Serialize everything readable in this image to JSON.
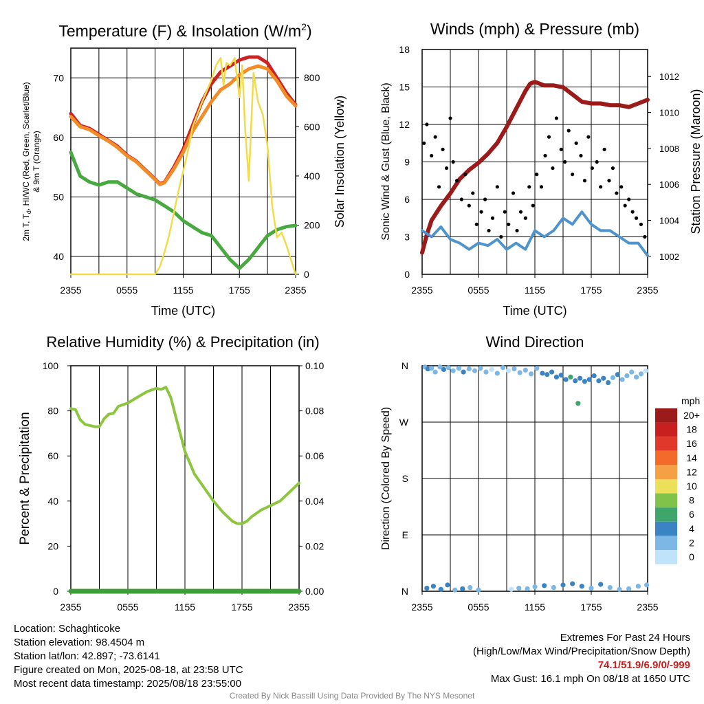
{
  "chart_data": [
    {
      "id": "temperature",
      "type": "line",
      "title": "Temperature (F) & Insolation (W/m",
      "title_sup": "2",
      "title_tail": ")",
      "xlabel": "Time (UTC)",
      "ylabel_lines": [
        "2m T, T",
        "d",
        ", HI/WC (Red, Green, Scarlet/Blue)",
        "& 9m T (Orange)"
      ],
      "y2label": "Solar Insolation (Yellow)",
      "xticks": [
        "2355",
        "0555",
        "1155",
        "1755",
        "2355"
      ],
      "xlim": [
        0,
        24
      ],
      "ylim": [
        37,
        75
      ],
      "yticks": [
        40,
        50,
        60,
        70
      ],
      "y2lim": [
        0,
        920
      ],
      "y2ticks": [
        0,
        200,
        400,
        600,
        800
      ],
      "grid": true,
      "x_hours_since_2355": [
        0,
        1,
        2,
        3,
        4,
        5,
        6,
        7,
        8,
        9,
        9.5,
        10,
        11,
        12,
        13,
        14,
        15,
        16,
        17,
        18,
        19,
        20,
        21,
        22,
        23,
        24
      ],
      "series": [
        {
          "color": "#cc2222",
          "values": [
            64,
            62,
            61.5,
            60.5,
            59.5,
            58.5,
            57,
            56,
            54.5,
            53,
            52.2,
            52.5,
            55,
            58,
            62,
            66,
            69,
            71,
            72,
            73,
            73.5,
            73.5,
            72.5,
            70,
            67.5,
            65.5
          ]
        },
        {
          "color": "#f28c28",
          "values": [
            63.5,
            61.8,
            61.3,
            60.3,
            59.4,
            58.3,
            56.9,
            55.9,
            54.4,
            52.9,
            52.1,
            52.4,
            54.7,
            57.5,
            61,
            63.5,
            66,
            68,
            69,
            70.5,
            71.5,
            72,
            71.5,
            69.5,
            67,
            65.3
          ]
        },
        {
          "color": "#48a941",
          "values": [
            57.5,
            53.5,
            52.5,
            52,
            52.5,
            52.5,
            51.5,
            50.5,
            50,
            49.5,
            49,
            48.5,
            47.5,
            46,
            45,
            44,
            43.5,
            41.5,
            39.5,
            38,
            39.5,
            41.5,
            43.5,
            44.5,
            45,
            45.2
          ]
        },
        {
          "color": "#f0dc4b",
          "axis": "y2",
          "x_hours_since_2355": [
            0,
            8,
            9,
            9.5,
            10,
            10.5,
            11,
            11.5,
            12,
            12.5,
            13,
            14,
            15,
            15.5,
            16,
            16.3,
            16.6,
            17,
            17.5,
            18,
            18.3,
            18.6,
            19,
            19.5,
            20,
            20.5,
            21,
            21.5,
            22,
            22.5,
            23,
            23.5,
            24
          ],
          "values": [
            0,
            0,
            0,
            30,
            90,
            160,
            250,
            340,
            420,
            500,
            600,
            700,
            790,
            850,
            880,
            770,
            860,
            850,
            880,
            720,
            850,
            600,
            380,
            820,
            700,
            650,
            520,
            280,
            150,
            170,
            120,
            60,
            0
          ]
        }
      ]
    },
    {
      "id": "winds",
      "type": "line",
      "title": "Winds (mph) & Pressure (mb)",
      "xlabel": "Time (UTC)",
      "ylabel": "Sonic Wind & Gust (Blue, Black)",
      "y2label": "Station Pressure (Maroon)",
      "xticks": [
        "2355",
        "0555",
        "1155",
        "1755",
        "2355"
      ],
      "xlim": [
        0,
        24
      ],
      "ylim": [
        0,
        18
      ],
      "yticks": [
        0,
        3,
        6,
        9,
        12,
        15,
        18
      ],
      "y2lim": [
        1001.0,
        1013.5
      ],
      "y2ticks": [
        1002,
        1004,
        1006,
        1008,
        1010,
        1012
      ],
      "grid": true,
      "series": [
        {
          "color": "#9b1a1a",
          "axis": "y2",
          "x_hours_since_2355": [
            0,
            0.5,
            1,
            2,
            3,
            4,
            5,
            6,
            7,
            8,
            9,
            10,
            11,
            11.5,
            12,
            13,
            14,
            15,
            16,
            17,
            18,
            19,
            20,
            21,
            22,
            23,
            24
          ],
          "values": [
            1002.2,
            1003.2,
            1004.0,
            1004.8,
            1005.5,
            1006.3,
            1006.8,
            1007.2,
            1007.7,
            1008.3,
            1009.2,
            1010.2,
            1011.2,
            1011.6,
            1011.7,
            1011.5,
            1011.5,
            1011.4,
            1011.0,
            1010.6,
            1010.5,
            1010.5,
            1010.4,
            1010.4,
            1010.3,
            1010.5,
            1010.7
          ]
        },
        {
          "color": "#4f94cd",
          "x_hours_since_2355": [
            0,
            1,
            2,
            3,
            4,
            5,
            6,
            7,
            8,
            9,
            10,
            11,
            12,
            13,
            14,
            15,
            16,
            17,
            18,
            19,
            20,
            21,
            22,
            23,
            24
          ],
          "values": [
            3.5,
            3.0,
            3.8,
            2.8,
            2.5,
            2.0,
            2.5,
            2.3,
            2.8,
            2.0,
            2.5,
            2.0,
            3.5,
            3.0,
            3.5,
            4.5,
            4.0,
            5.0,
            4.0,
            3.5,
            3.5,
            3.0,
            2.5,
            2.5,
            1.5
          ]
        },
        {
          "color": "#000000",
          "type": "scatter",
          "x_hours_since_2355": [
            0.2,
            0.5,
            1,
            1.4,
            1.8,
            2.2,
            2.6,
            3,
            3.3,
            3.7,
            4.2,
            4.6,
            5,
            5.4,
            5.8,
            6.3,
            6.7,
            7.1,
            7.5,
            8,
            8.4,
            8.8,
            9.2,
            9.7,
            10.1,
            10.5,
            11,
            11.4,
            11.8,
            12.2,
            12.7,
            13.1,
            13.5,
            13.9,
            14.3,
            14.8,
            15.2,
            15.6,
            16,
            16.4,
            16.9,
            17.3,
            17.7,
            18.1,
            18.6,
            19,
            19.4,
            19.9,
            20.3,
            20.7,
            21.2,
            21.6,
            22,
            22.4,
            22.8,
            23.3,
            23.7
          ],
          "values": [
            10.5,
            12.0,
            9.5,
            11.0,
            7.0,
            10.0,
            8.5,
            12.5,
            9.0,
            7.5,
            6.0,
            8.0,
            5.5,
            6.5,
            4.0,
            5.0,
            6.0,
            3.5,
            4.5,
            7.0,
            3.0,
            5.0,
            4.0,
            6.5,
            3.5,
            5.0,
            4.5,
            7.0,
            5.5,
            8.0,
            7.0,
            9.5,
            11.0,
            8.5,
            12.5,
            10.0,
            9.0,
            11.5,
            8.0,
            10.5,
            9.5,
            7.5,
            11.0,
            8.5,
            9.0,
            7.0,
            10.0,
            7.5,
            8.5,
            6.5,
            7.0,
            5.5,
            6.0,
            5.0,
            4.5,
            4.0,
            3.0
          ]
        }
      ]
    },
    {
      "id": "humidity",
      "type": "line",
      "title": "Relative Humidity (%) & Precipitation (in)",
      "ylabel": "Percent & Precipitation",
      "xticks": [
        "2355",
        "0555",
        "1155",
        "1755",
        "2355"
      ],
      "xlim": [
        0,
        24
      ],
      "ylim": [
        0,
        100
      ],
      "yticks": [
        0,
        20,
        40,
        60,
        80,
        100
      ],
      "y2lim": [
        0,
        0.1
      ],
      "y2ticks": [
        "0.00",
        "0.02",
        "0.04",
        "0.06",
        "0.08",
        "0.10"
      ],
      "grid": true,
      "series": [
        {
          "color": "#8cc63f",
          "x_hours_since_2355": [
            0,
            0.5,
            1,
            1.5,
            2,
            2.5,
            3,
            3.5,
            4,
            4.5,
            5,
            6,
            7,
            8,
            9,
            9.5,
            10,
            10.5,
            11,
            11.5,
            12,
            13,
            14,
            15,
            16,
            17,
            17.5,
            18,
            18.5,
            19,
            20,
            21,
            22,
            23,
            24
          ],
          "values": [
            81,
            80.5,
            76,
            74,
            73.5,
            73,
            73,
            76.5,
            78.5,
            79,
            82,
            83.5,
            86,
            88.5,
            90,
            89.5,
            90.5,
            86,
            78,
            70,
            62,
            52,
            46,
            40,
            35,
            31,
            30,
            30,
            31,
            33,
            36,
            38,
            40,
            44,
            48
          ]
        },
        {
          "color": "#3f9e3a",
          "values_note": "precipitation",
          "x_hours_since_2355": [
            0,
            24
          ],
          "values": [
            0,
            0
          ]
        }
      ]
    },
    {
      "id": "direction",
      "type": "scatter",
      "title": "Wind Direction",
      "ylabel": "Direction (Colored By Speed)",
      "xticks": [
        "2355",
        "0555",
        "1155",
        "1755",
        "2355"
      ],
      "xlim": [
        0,
        24
      ],
      "ylim": [
        0,
        360
      ],
      "yticks": [
        "N",
        "E",
        "S",
        "W",
        "N"
      ],
      "grid": true,
      "legend_title": "mph",
      "legend": [
        {
          "label": "20+",
          "color": "#9b1b1b"
        },
        {
          "label": "18",
          "color": "#c8201f"
        },
        {
          "label": "16",
          "color": "#e0392b"
        },
        {
          "label": "14",
          "color": "#f26b2b"
        },
        {
          "label": "12",
          "color": "#f6a044"
        },
        {
          "label": "10",
          "color": "#ece05a"
        },
        {
          "label": "8",
          "color": "#80c24a"
        },
        {
          "label": "6",
          "color": "#3fa66b"
        },
        {
          "label": "4",
          "color": "#3a84c4"
        },
        {
          "label": "2",
          "color": "#7db7e5"
        },
        {
          "label": "0",
          "color": "#bfe3f8"
        }
      ],
      "points": {
        "x_hours_since_2355": [
          0.3,
          0.6,
          1.0,
          1.4,
          1.9,
          2.3,
          2.8,
          3.3,
          3.9,
          4.4,
          5.0,
          5.6,
          6.2,
          6.8,
          7.4,
          8.0,
          8.6,
          9.2,
          9.8,
          10.4,
          11.0,
          11.6,
          12.2,
          12.8,
          13.3,
          13.8,
          14.3,
          14.8,
          15.3,
          15.8,
          16.3,
          16.8,
          17.3,
          17.8,
          18.3,
          18.8,
          19.3,
          19.8,
          20.3,
          20.8,
          21.3,
          21.8,
          22.3,
          22.8,
          23.3,
          23.8,
          0.5,
          1.2,
          2.0,
          2.7,
          3.5,
          4.3,
          5.1,
          6.0,
          9.5,
          10.3,
          11.2,
          12.0,
          13.0,
          14.0,
          15.0,
          16.0,
          17.0,
          18.0,
          19.0,
          20.0,
          21.0,
          22.0,
          23.0,
          23.9,
          16.6
        ],
        "direction_deg": [
          358,
          355,
          356,
          350,
          358,
          354,
          357,
          352,
          356,
          350,
          355,
          352,
          356,
          350,
          354,
          348,
          357,
          352,
          355,
          349,
          353,
          347,
          356,
          348,
          346,
          350,
          342,
          345,
          338,
          342,
          336,
          340,
          335,
          338,
          344,
          336,
          340,
          333,
          341,
          346,
          338,
          344,
          350,
          342,
          347,
          352,
          5,
          8,
          3,
          10,
          2,
          4,
          6,
          2,
          3,
          5,
          4,
          7,
          9,
          6,
          10,
          12,
          8,
          5,
          11,
          6,
          3,
          4,
          8,
          10,
          300
        ],
        "speed_mph": [
          2,
          3,
          2,
          1,
          2,
          3,
          1,
          2,
          2,
          3,
          1,
          2,
          2,
          1,
          0,
          2,
          1,
          0,
          1,
          2,
          2,
          1,
          2,
          3,
          4,
          3,
          4,
          3,
          4,
          5,
          4,
          3,
          4,
          4,
          3,
          4,
          4,
          3,
          2,
          3,
          2,
          2,
          1,
          2,
          1,
          0,
          4,
          3,
          4,
          3,
          2,
          3,
          2,
          1,
          0,
          1,
          2,
          2,
          3,
          2,
          3,
          4,
          3,
          2,
          3,
          2,
          1,
          2,
          1,
          1,
          6
        ]
      }
    }
  ],
  "footer": {
    "location": "Location: Schaghticoke",
    "elevation": "Station elevation: 98.4504 m",
    "latlon": "Station lat/lon: 42.897; -73.6141",
    "created": "Figure created on Mon, 2025-08-18, at 23:58 UTC",
    "recent": "Most recent data timestamp: 2025/08/18 23:55:00",
    "extremes_title": "Extremes For Past 24 Hours",
    "extremes_legend": "(High/Low/Max Wind/Precipitation/Snow Depth)",
    "extremes_values": "74.1/51.9/6.9/0/-999",
    "max_gust": "Max Gust: 16.1 mph On 08/18 at 1650 UTC",
    "credit": "Created By Nick Bassill Using Data Provided By The NYS Mesonet"
  }
}
